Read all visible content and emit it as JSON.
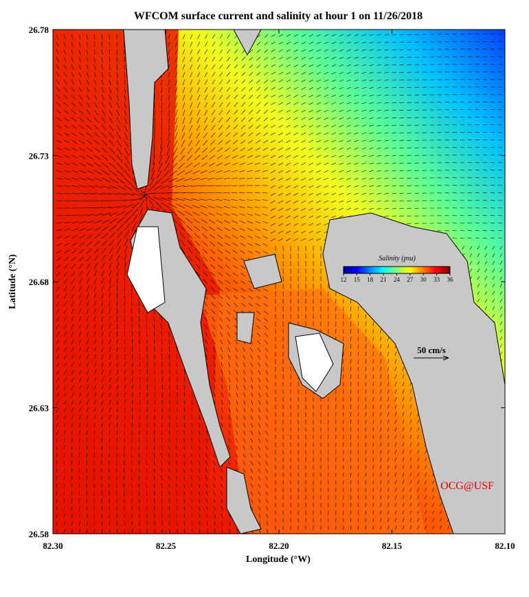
{
  "chart_data": {
    "type": "map",
    "title": "WFCOM surface current and salinity at hour 1 on 11/26/2018",
    "x_label": "Longitude (°W)",
    "y_label": "Latitude (°N)",
    "xlim": [
      82.3,
      82.1
    ],
    "xticks": [
      {
        "value": 82.3,
        "label": "82.30"
      },
      82.25,
      {
        "value": 82.2,
        "label": "82.20"
      },
      82.15,
      {
        "value": 82.1,
        "label": "82.10"
      }
    ],
    "ylim": [
      26.58,
      26.78
    ],
    "yticks": [
      26.58,
      26.63,
      26.68,
      26.73,
      26.78
    ],
    "colorbar": {
      "label": "Salinity (psu)",
      "lim": [
        12,
        36
      ],
      "ticks": [
        12,
        15,
        18,
        21,
        24,
        27,
        30,
        33,
        36
      ]
    },
    "scale_arrow": "50 cm/s",
    "credit": "OCG@USF"
  }
}
